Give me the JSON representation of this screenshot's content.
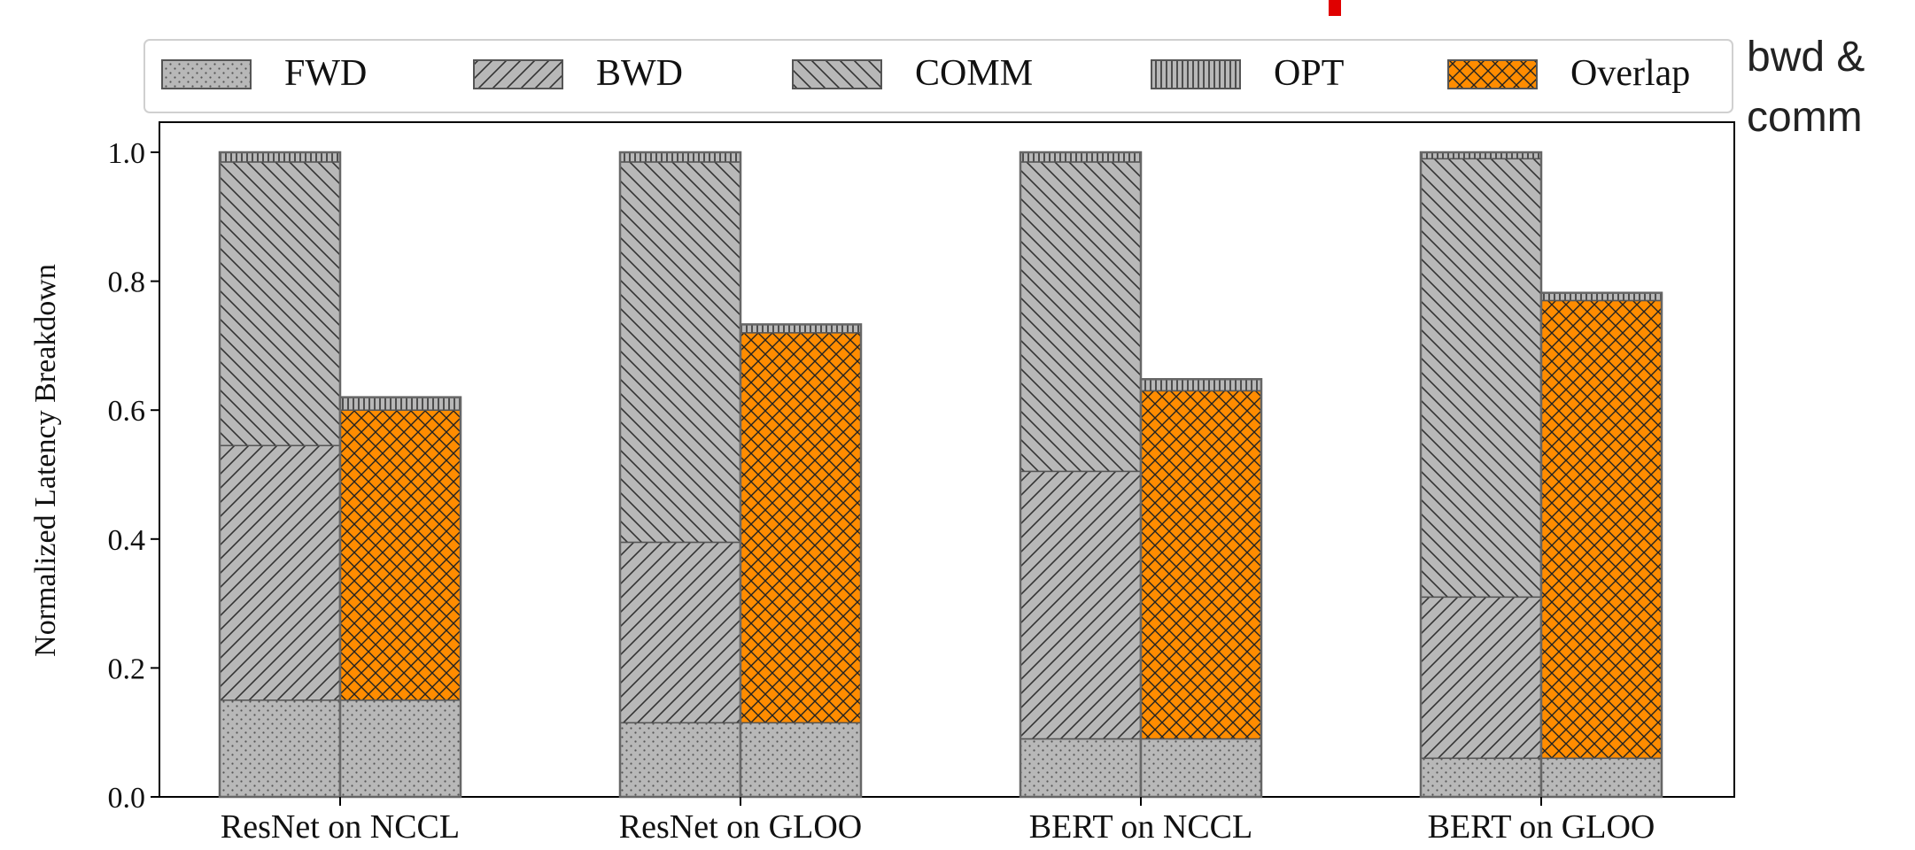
{
  "chart_data": {
    "type": "bar",
    "ylabel": "Normalized Latency Breakdown",
    "ylim": [
      0,
      1.0
    ],
    "yticks": [
      "0.0",
      "0.2",
      "0.4",
      "0.6",
      "0.8",
      "1.0"
    ],
    "legend_position": "top",
    "categories": [
      "ResNet on NCCL",
      "ResNet on GLOO",
      "BERT on NCCL",
      "BERT on GLOO"
    ],
    "stack_components": [
      "FWD",
      "BWD",
      "COMM",
      "OPT"
    ],
    "sequential": [
      {
        "FWD": 0.15,
        "BWD": 0.395,
        "COMM": 0.44,
        "OPT": 0.015
      },
      {
        "FWD": 0.115,
        "BWD": 0.28,
        "COMM": 0.59,
        "OPT": 0.015
      },
      {
        "FWD": 0.09,
        "BWD": 0.415,
        "COMM": 0.48,
        "OPT": 0.015
      },
      {
        "FWD": 0.06,
        "BWD": 0.25,
        "COMM": 0.68,
        "OPT": 0.01
      }
    ],
    "overlapped": [
      {
        "FWD": 0.15,
        "Overlap": 0.45,
        "OPT": 0.02
      },
      {
        "FWD": 0.115,
        "Overlap": 0.605,
        "OPT": 0.013
      },
      {
        "FWD": 0.09,
        "Overlap": 0.54,
        "OPT": 0.018
      },
      {
        "FWD": 0.06,
        "Overlap": 0.71,
        "OPT": 0.012
      }
    ],
    "legend": [
      {
        "key": "FWD",
        "label": "FWD"
      },
      {
        "key": "BWD",
        "label": "BWD"
      },
      {
        "key": "COMM",
        "label": "COMM"
      },
      {
        "key": "OPT",
        "label": "OPT"
      },
      {
        "key": "Overlap",
        "label": "Overlap"
      }
    ],
    "colors": {
      "FWD": "#b5b5b5",
      "BWD": "#b5b5b5",
      "COMM": "#b5b5b5",
      "OPT": "#b5b5b5",
      "Overlap": "#ff8c00",
      "title_red": "#e00000"
    },
    "grid": false
  },
  "annotation": {
    "lines": [
      "bwd &",
      "comm"
    ]
  }
}
